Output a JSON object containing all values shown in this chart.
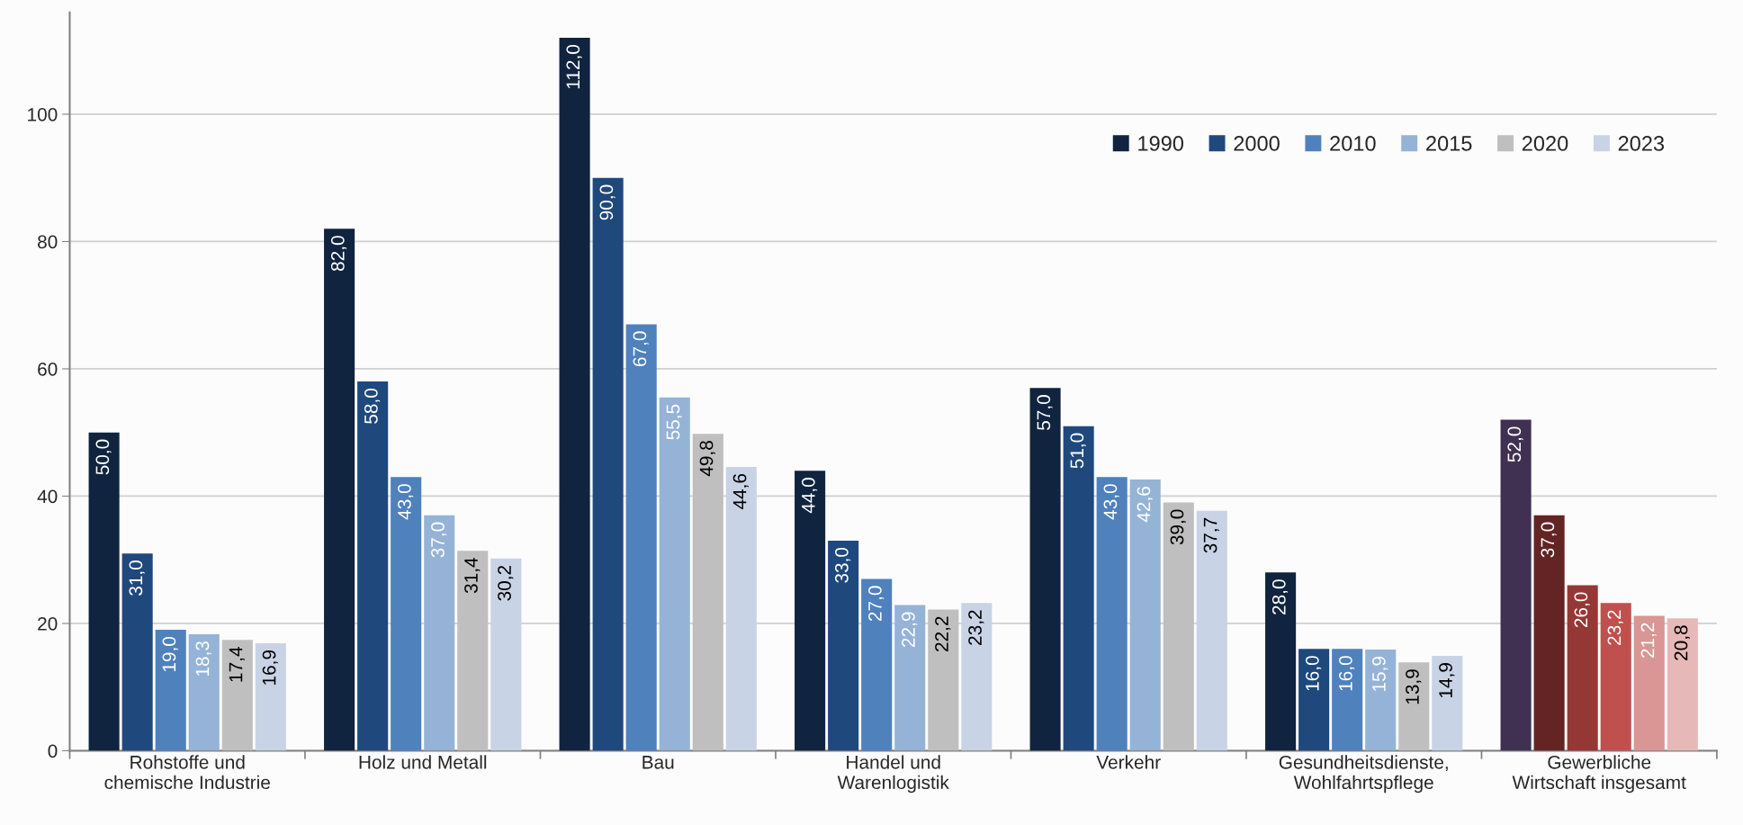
{
  "chart_data": {
    "type": "bar",
    "categories": [
      "Rohstoffe und\nchemische Industrie",
      "Holz und Metall",
      "Bau",
      "Handel und\nWarenlogistik",
      "Verkehr",
      "Gesundheitsdienste,\nWohlfahrtspflege",
      "Gewerbliche\nWirtschaft insgesamt"
    ],
    "series": [
      {
        "name": "1990",
        "color": "#10243f",
        "colors": [
          "#10243f",
          "#10243f",
          "#10243f",
          "#10243f",
          "#10243f",
          "#10243f",
          "#403152"
        ],
        "values": [
          50.0,
          82.0,
          112.0,
          44.0,
          57.0,
          28.0,
          52.0
        ],
        "value_labels": [
          "50,0",
          "82,0",
          "112,0",
          "44,0",
          "57,0",
          "28,0",
          "52,0"
        ]
      },
      {
        "name": "2000",
        "color": "#1f497d",
        "colors": [
          "#1f497d",
          "#1f497d",
          "#1f497d",
          "#1f497d",
          "#1f497d",
          "#1f497d",
          "#632423"
        ],
        "values": [
          31.0,
          58.0,
          90.0,
          33.0,
          51.0,
          16.0,
          37.0
        ],
        "value_labels": [
          "31,0",
          "58,0",
          "90,0",
          "33,0",
          "51,0",
          "16,0",
          "37,0"
        ]
      },
      {
        "name": "2010",
        "color": "#4f81bd",
        "colors": [
          "#4f81bd",
          "#4f81bd",
          "#4f81bd",
          "#4f81bd",
          "#4f81bd",
          "#4f81bd",
          "#953735"
        ],
        "values": [
          19.0,
          43.0,
          67.0,
          27.0,
          43.0,
          16.0,
          26.0
        ],
        "value_labels": [
          "19,0",
          "43,0",
          "67,0",
          "27,0",
          "43,0",
          "16,0",
          "26,0"
        ]
      },
      {
        "name": "2015",
        "color": "#95b3d7",
        "colors": [
          "#95b3d7",
          "#95b3d7",
          "#95b3d7",
          "#95b3d7",
          "#95b3d7",
          "#95b3d7",
          "#c0504d"
        ],
        "values": [
          18.3,
          37.0,
          55.5,
          22.9,
          42.6,
          15.9,
          23.2
        ],
        "value_labels": [
          "18,3",
          "37,0",
          "55,5",
          "22,9",
          "42,6",
          "15,9",
          "23,2"
        ]
      },
      {
        "name": "2020",
        "color": "#bfbfbf",
        "colors": [
          "#bfbfbf",
          "#bfbfbf",
          "#bfbfbf",
          "#bfbfbf",
          "#bfbfbf",
          "#bfbfbf",
          "#d99694"
        ],
        "values": [
          17.4,
          31.4,
          49.8,
          22.2,
          39.0,
          13.9,
          21.2
        ],
        "value_labels": [
          "17,4",
          "31,4",
          "49,8",
          "22,2",
          "39,0",
          "13,9",
          "21,2"
        ]
      },
      {
        "name": "2023",
        "color": "#c9d3e6",
        "colors": [
          "#c9d3e6",
          "#c9d3e6",
          "#c9d3e6",
          "#c9d3e6",
          "#c9d3e6",
          "#c9d3e6",
          "#e6b9b8"
        ],
        "values": [
          16.9,
          30.2,
          44.6,
          23.2,
          37.7,
          14.9,
          20.8
        ],
        "value_labels": [
          "16,9",
          "30,2",
          "44,6",
          "23,2",
          "37,7",
          "14,9",
          "20,8"
        ]
      }
    ],
    "ylim": [
      0,
      116
    ],
    "yticks": [
      0,
      20,
      40,
      60,
      80,
      100
    ],
    "grid": "y",
    "legend": "top right"
  }
}
